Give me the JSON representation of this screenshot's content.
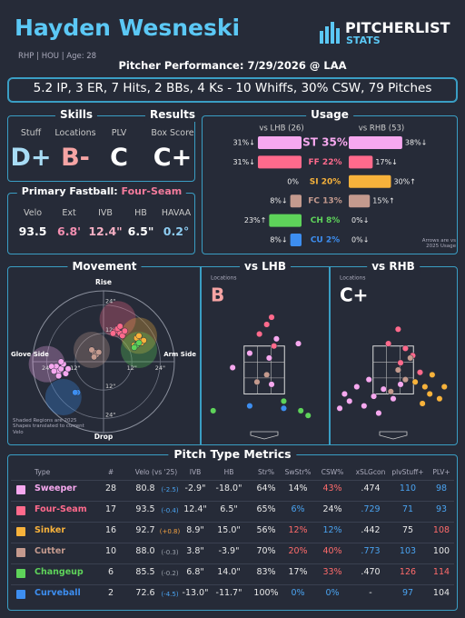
{
  "header": {
    "title": "Hayden Wesneski",
    "info": "RHP | HOU | Age: 28",
    "logo_main": "PITCHERLIST",
    "logo_sub": "STATS",
    "subtitle": "Pitcher Performance: 7/29/2026 @ LAA"
  },
  "summary": "5.2 IP, 3 ER, 7 Hits, 2 BBs, 4 Ks - 10 Whiffs, 30% CSW, 79 Pitches",
  "skills": {
    "title": "Skills",
    "labels": [
      "Stuff",
      "Locations",
      "PLV"
    ],
    "grades": [
      "D+",
      "B-",
      "C"
    ],
    "grade_colors": [
      "#a8dcf5",
      "#f6a4a4",
      "#ffffff"
    ]
  },
  "results": {
    "title": "Results",
    "label": "Box Score",
    "grade": "C+",
    "grade_color": "#ffffff"
  },
  "fastball": {
    "title": "Primary Fastball:",
    "pitch": "Four-Seam",
    "pitch_color": "#f47b9c",
    "labels": [
      "Velo",
      "Ext",
      "IVB",
      "HB",
      "HAVAA"
    ],
    "values": [
      "93.5",
      "6.8'",
      "12.4\"",
      "6.5\"",
      "0.2°"
    ],
    "value_colors": [
      "#ffffff",
      "#f48fb1",
      "#f6b0c4",
      "#ffffff",
      "#8ecdf2"
    ]
  },
  "chart_data": [
    {
      "type": "bar",
      "title": "Usage",
      "categories": [
        "ST 35%",
        "FF 22%",
        "SI 20%",
        "FC 13%",
        "CH 8%",
        "CU 2%"
      ],
      "category_colors": [
        "#f6a8ef",
        "#ff6a8c",
        "#f7b23b",
        "#c49a8e",
        "#5ed35a",
        "#3d8ef0"
      ],
      "xlim": [
        0,
        40
      ],
      "series": [
        {
          "name": "vs LHB (26)",
          "values": [
            31,
            31,
            0,
            8,
            23,
            8
          ],
          "value_labels": [
            "31%↓",
            "31%↓",
            "0%",
            "8%↓",
            "23%↑",
            "8%↓"
          ]
        },
        {
          "name": "vs RHB (53)",
          "values": [
            38,
            17,
            30,
            15,
            0,
            0
          ],
          "value_labels": [
            "38%↓",
            "17%↓",
            "30%↑",
            "15%↑",
            "0%↓",
            "0%↓"
          ]
        }
      ],
      "note": "Arrows are vs 2025 Usage"
    },
    {
      "type": "scatter",
      "title": "Movement",
      "top_label": "Rise",
      "bottom_label": "Drop",
      "left_label": "Glove Side",
      "right_label": "Arm Side",
      "note": "Shaded Regions are 2025 Shapes translated to current Velo",
      "xlim": [
        -30,
        30
      ],
      "ylim": [
        -30,
        30
      ],
      "xticks": [
        {
          "value": -24,
          "label": "24\""
        },
        {
          "value": -12,
          "label": "12\""
        },
        {
          "value": 12,
          "label": "12\""
        },
        {
          "value": 24,
          "label": "24\""
        }
      ],
      "yticks": [
        {
          "value": -24,
          "label": "24\""
        },
        {
          "value": -12,
          "label": "12\""
        },
        {
          "value": 12,
          "label": "12\""
        },
        {
          "value": 24,
          "label": "24\""
        }
      ],
      "series": [
        {
          "color": "#f6a8ef",
          "region": [
            -24,
            -1
          ],
          "x": [
            -20,
            -19,
            -18,
            -17,
            -22,
            -16,
            -18,
            -21,
            -15,
            -19
          ],
          "values": [
            -2,
            -4,
            -3,
            -1,
            -2,
            -5,
            0,
            -4,
            -3,
            -6
          ]
        },
        {
          "color": "#ff6a8c",
          "region": [
            6,
            18
          ],
          "x": [
            5,
            7,
            6,
            8,
            4,
            7,
            9
          ],
          "values": [
            13,
            12,
            14,
            11,
            12,
            15,
            13
          ]
        },
        {
          "color": "#f7b23b",
          "region": [
            15,
            11
          ],
          "x": [
            15,
            16,
            14,
            17,
            13,
            15
          ],
          "values": [
            9,
            8,
            10,
            9,
            7,
            11
          ]
        },
        {
          "color": "#c49a8e",
          "region": [
            -5,
            5
          ],
          "x": [
            -4,
            -3,
            -5,
            -2,
            -4
          ],
          "values": [
            4,
            3,
            5,
            4,
            2
          ]
        },
        {
          "color": "#5ed35a",
          "region": [
            15,
            5
          ],
          "x": [
            14,
            13,
            15
          ],
          "values": [
            7,
            6,
            8
          ]
        },
        {
          "color": "#3d8ef0",
          "region": [
            -17,
            -15
          ],
          "x": [
            -11,
            -12
          ],
          "values": [
            -13,
            -13
          ]
        }
      ]
    },
    {
      "type": "scatter",
      "title": "vs LHB",
      "subtitle": "Locations",
      "grade": "B",
      "grade_color": "#f6a4a4",
      "xlim": [
        -2.5,
        2.5
      ],
      "ylim": [
        0,
        5.5
      ],
      "series": [
        {
          "color": "#f6a8ef",
          "x": [
            -0.6,
            0.5,
            0.2,
            -1.3,
            0.3,
            1.4
          ],
          "values": [
            3.2,
            3.8,
            3.0,
            2.6,
            1.9,
            3.6
          ]
        },
        {
          "color": "#ff6a8c",
          "x": [
            0.1,
            -0.2,
            0.4,
            0.3
          ],
          "values": [
            4.4,
            4.0,
            3.5,
            4.7
          ]
        },
        {
          "color": "#c49a8e",
          "x": [
            0.1,
            -0.3
          ],
          "values": [
            2.3,
            2.0
          ]
        },
        {
          "color": "#5ed35a",
          "x": [
            -2.1,
            1.5,
            0.8,
            1.8
          ],
          "values": [
            0.8,
            0.8,
            1.2,
            0.6
          ]
        },
        {
          "color": "#3d8ef0",
          "x": [
            0.8,
            -0.6
          ],
          "values": [
            0.9,
            1.0
          ]
        }
      ]
    },
    {
      "type": "scatter",
      "title": "vs RHB",
      "subtitle": "Locations",
      "grade": "C+",
      "grade_color": "#ffffff",
      "xlim": [
        -2.5,
        2.5
      ],
      "ylim": [
        0,
        5.5
      ],
      "series": [
        {
          "color": "#f6a8ef",
          "x": [
            -2.0,
            -1.8,
            -1.5,
            -1.2,
            -0.8,
            -0.4,
            0.0,
            -1.0,
            -2.2,
            -0.6,
            0.3
          ],
          "values": [
            1.5,
            1.2,
            1.8,
            1.0,
            1.4,
            1.7,
            1.3,
            2.1,
            0.9,
            0.7,
            1.9
          ]
        },
        {
          "color": "#ff6a8c",
          "x": [
            0.5,
            0.8,
            -0.2,
            0.3,
            1.1,
            0.2
          ],
          "values": [
            3.4,
            3.1,
            3.6,
            2.8,
            2.4,
            4.2
          ]
        },
        {
          "color": "#f7b23b",
          "x": [
            1.3,
            1.5,
            1.9,
            0.9,
            1.6,
            2.1,
            1.2
          ],
          "values": [
            1.8,
            1.5,
            1.3,
            2.0,
            2.3,
            1.8,
            1.1
          ]
        },
        {
          "color": "#c49a8e",
          "x": [
            0.2,
            0.5,
            0.7,
            -0.1
          ],
          "values": [
            2.5,
            2.1,
            3.0,
            1.6
          ]
        }
      ]
    }
  ],
  "table": {
    "title": "Pitch Type Metrics",
    "columns": [
      "Type",
      "#",
      "Velo (vs '25)",
      "IVB",
      "HB",
      "Str%",
      "SwStr%",
      "CSW%",
      "xSLGcon",
      "plvStuff+",
      "PLV+"
    ],
    "rows": [
      {
        "type": "Sweeper",
        "color": "#f6a8ef",
        "cells": [
          "28",
          "80.8",
          "(-2.5)",
          "-2.9\"",
          "-18.0\"",
          "64%",
          "14%",
          "43%",
          ".474",
          "110",
          "98"
        ],
        "cell_colors": [
          null,
          null,
          "#4aa3f0",
          null,
          null,
          null,
          null,
          "#ff6b6b",
          null,
          "#4aa3f0",
          "#4aa3f0"
        ]
      },
      {
        "type": "Four-Seam",
        "color": "#ff6a8c",
        "cells": [
          "17",
          "93.5",
          "(-0.4)",
          "12.4\"",
          "6.5\"",
          "65%",
          "6%",
          "24%",
          ".729",
          "71",
          "93"
        ],
        "cell_colors": [
          null,
          null,
          "#4aa3f0",
          null,
          null,
          null,
          "#4aa3f0",
          null,
          "#4aa3f0",
          "#4aa3f0",
          "#4aa3f0"
        ]
      },
      {
        "type": "Sinker",
        "color": "#f7b23b",
        "cells": [
          "16",
          "92.7",
          "(+0.8)",
          "8.9\"",
          "15.0\"",
          "56%",
          "12%",
          "12%",
          ".442",
          "75",
          "108"
        ],
        "cell_colors": [
          null,
          null,
          "#f5a342",
          null,
          null,
          null,
          "#ff6b6b",
          "#4aa3f0",
          null,
          null,
          "#ff6b6b"
        ]
      },
      {
        "type": "Cutter",
        "color": "#c49a8e",
        "cells": [
          "10",
          "88.0",
          "(-0.3)",
          "3.8\"",
          "-3.9\"",
          "70%",
          "20%",
          "40%",
          ".773",
          "103",
          "100"
        ],
        "cell_colors": [
          null,
          null,
          null,
          null,
          null,
          null,
          "#ff6b6b",
          "#ff6b6b",
          "#4aa3f0",
          "#4aa3f0",
          null
        ]
      },
      {
        "type": "Changeup",
        "color": "#5ed35a",
        "cells": [
          "6",
          "85.5",
          "(-0.2)",
          "6.8\"",
          "14.0\"",
          "83%",
          "17%",
          "33%",
          ".470",
          "126",
          "114"
        ],
        "cell_colors": [
          null,
          null,
          null,
          null,
          null,
          null,
          null,
          "#ff6b6b",
          null,
          "#ff6b6b",
          "#ff6b6b"
        ]
      },
      {
        "type": "Curveball",
        "color": "#3d8ef0",
        "cells": [
          "2",
          "72.6",
          "(-4.5)",
          "-13.0\"",
          "-11.7\"",
          "100%",
          "0%",
          "0%",
          "-",
          "97",
          "104"
        ],
        "cell_colors": [
          null,
          null,
          "#4aa3f0",
          null,
          null,
          null,
          "#4aa3f0",
          "#4aa3f0",
          null,
          "#4aa3f0",
          null
        ]
      }
    ]
  }
}
